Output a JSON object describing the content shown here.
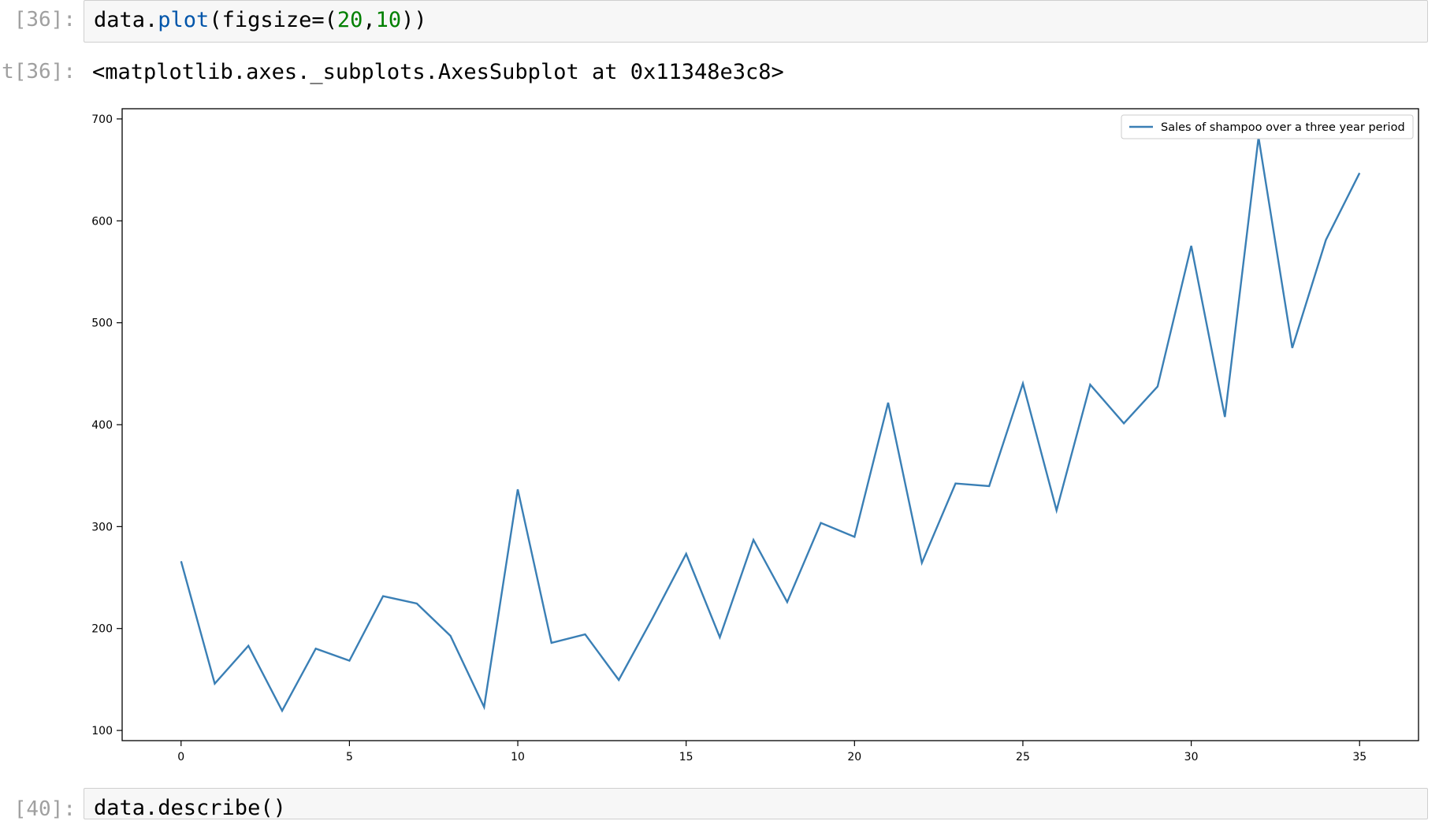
{
  "notebook": {
    "cell_in_prompt": "[36]:",
    "code": {
      "obj": "data.",
      "fn": "plot",
      "open": "(figsize=(",
      "n1": "20",
      "comma": ",",
      "n2": "10",
      "close": "))"
    },
    "cell_out_prompt": "t[36]:",
    "output_repr": "<matplotlib.axes._subplots.AxesSubplot at 0x11348e3c8>",
    "next_cell_prompt": "[40]:",
    "next_cell_code": "data.describe()"
  },
  "colors": {
    "line": "#3a7fb5",
    "axis": "#000000",
    "code_bg": "#f7f7f7",
    "prompt": "#a0a0a0"
  },
  "chart_data": {
    "type": "line",
    "title": "",
    "xlabel": "",
    "ylabel": "",
    "xlim": [
      -1.75,
      36.75
    ],
    "ylim": [
      90,
      710
    ],
    "xticks": [
      0,
      5,
      10,
      15,
      20,
      25,
      30,
      35
    ],
    "yticks": [
      100,
      200,
      300,
      400,
      500,
      600,
      700
    ],
    "grid": false,
    "legend_position": "top-right",
    "series": [
      {
        "name": "Sales of shampoo over a three year period",
        "x": [
          0,
          1,
          2,
          3,
          4,
          5,
          6,
          7,
          8,
          9,
          10,
          11,
          12,
          13,
          14,
          15,
          16,
          17,
          18,
          19,
          20,
          21,
          22,
          23,
          24,
          25,
          26,
          27,
          28,
          29,
          30,
          31,
          32,
          33,
          34,
          35
        ],
        "values": [
          266.0,
          145.9,
          183.1,
          119.3,
          180.3,
          168.5,
          231.8,
          224.5,
          192.8,
          122.9,
          336.5,
          185.9,
          194.3,
          149.5,
          210.1,
          273.3,
          191.4,
          287.0,
          226.0,
          303.6,
          289.9,
          421.6,
          264.5,
          342.3,
          339.7,
          440.4,
          315.9,
          439.3,
          401.3,
          437.4,
          575.5,
          407.6,
          682.0,
          475.3,
          581.3,
          646.9
        ]
      }
    ]
  }
}
